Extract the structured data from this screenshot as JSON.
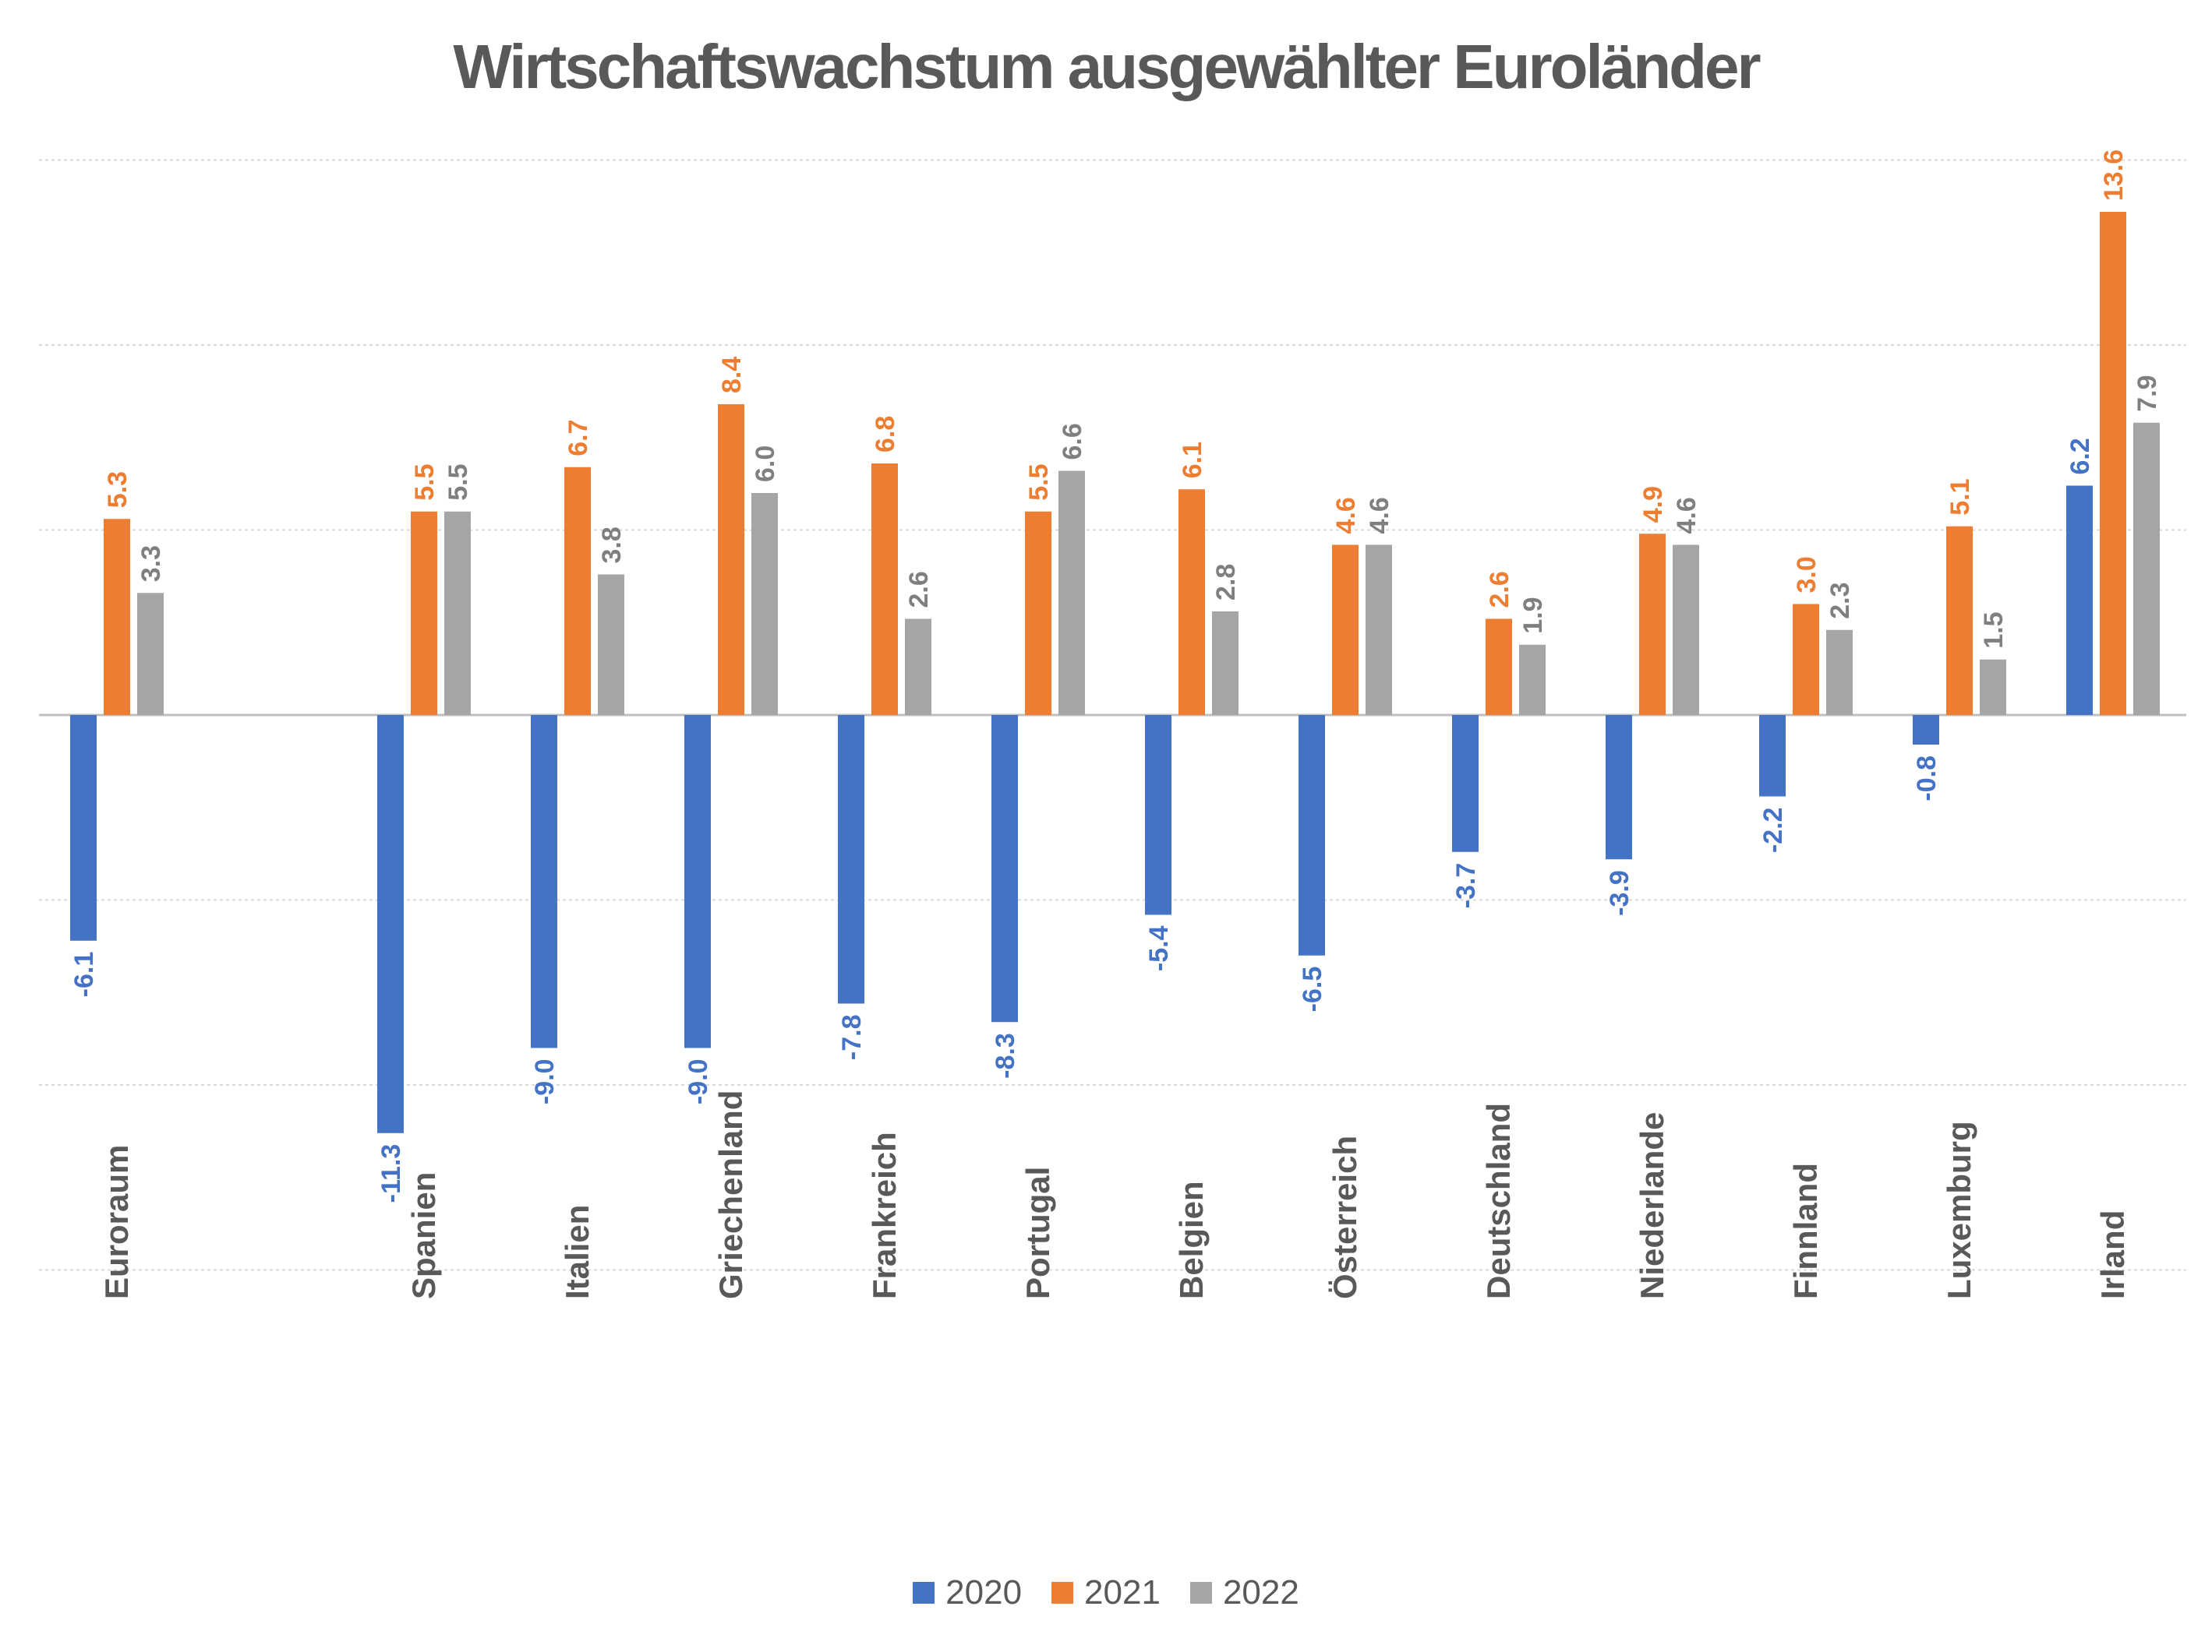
{
  "chart_data": {
    "type": "bar",
    "title": "Wirtschaftswachstum ausgewählter Euroländer",
    "xlabel": "",
    "ylabel": "",
    "ylim": [
      -15,
      15
    ],
    "grid": true,
    "legend_position": "bottom",
    "categories": [
      "Euroraum",
      "",
      "Spanien",
      "Italien",
      "Griechenland",
      "Frankreich",
      "Portugal",
      "Belgien",
      "Österreich",
      "Deutschland",
      "Niederlande",
      "Finnland",
      "Luxemburg",
      "Irland"
    ],
    "series": [
      {
        "name": "2020",
        "color": "#4472C4",
        "values": [
          -6.1,
          null,
          -11.3,
          -9.0,
          -9.0,
          -7.8,
          -8.3,
          -5.4,
          -6.5,
          -3.7,
          -3.9,
          -2.2,
          -0.8,
          6.2
        ]
      },
      {
        "name": "2021",
        "color": "#ED7D31",
        "values": [
          5.3,
          null,
          5.5,
          6.7,
          8.4,
          6.8,
          5.5,
          6.1,
          4.6,
          2.6,
          4.9,
          3.0,
          5.1,
          13.6
        ]
      },
      {
        "name": "2022",
        "color": "#A5A5A5",
        "values": [
          3.3,
          null,
          5.5,
          3.8,
          6.0,
          2.6,
          6.6,
          2.8,
          4.6,
          1.9,
          4.6,
          2.3,
          1.5,
          7.9
        ]
      }
    ]
  },
  "colors": {
    "title": "#595959",
    "axis_labels": "#595959",
    "gridline": "#D9D9D9",
    "zero_line": "#BFBFBF"
  }
}
